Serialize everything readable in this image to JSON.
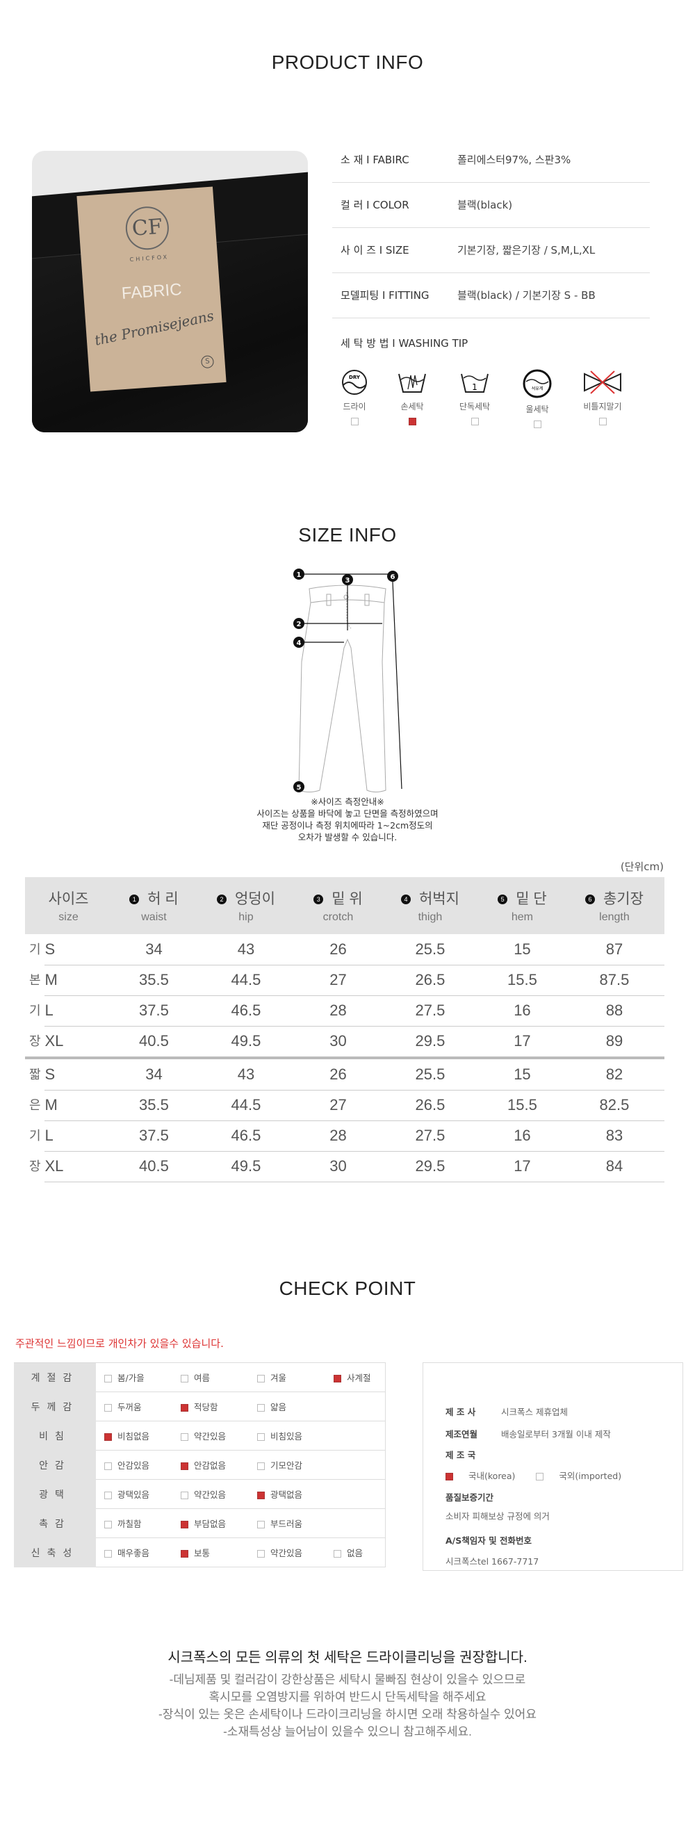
{
  "product_info": {
    "title": "PRODUCT INFO",
    "photo": {
      "tag_brand": "CHICFOX",
      "tag_monogram": "CF",
      "tag_text": "FABRIC",
      "tag_script": "the Promisejeans",
      "tag_size": "S"
    },
    "rows": [
      {
        "label": "소 재 I FABIRC",
        "value": "폴리에스터97%, 스판3%"
      },
      {
        "label": "컬 러 I COLOR",
        "value": "블랙(black)"
      },
      {
        "label": "사 이 즈 I SIZE",
        "value": "기본기장, 짧은기장 / S,M,L,XL"
      },
      {
        "label": "모델피팅 I FITTING",
        "value": "블랙(black) / 기본기장 S - BB"
      },
      {
        "label": "세 탁 방 법 I WASHING TIP",
        "value": ""
      }
    ],
    "washing": [
      {
        "icon": "dry-clean-icon",
        "label": "드라이",
        "checked": false,
        "icon_text": "DRY"
      },
      {
        "icon": "hand-wash-icon",
        "label": "손세탁",
        "checked": true
      },
      {
        "icon": "separate-wash-icon",
        "label": "단독세탁",
        "checked": false,
        "icon_text": "1"
      },
      {
        "icon": "wool-wash-icon",
        "label": "울세탁",
        "checked": false,
        "icon_text": "석유계"
      },
      {
        "icon": "no-wring-icon",
        "label": "비틀지말기",
        "checked": false
      }
    ],
    "check_color": "#cc3333"
  },
  "size_info": {
    "title": "SIZE INFO",
    "diagram_markers": [
      "1",
      "2",
      "3",
      "4",
      "5",
      "6"
    ],
    "notes": [
      "※사이즈 측정안내※",
      "사이즈는 상품을 바닥에 놓고 단면을 측정하였으며",
      "재단 공정이나 측정 위치에따라 1~2cm정도의",
      "오차가 발생할 수 있습니다."
    ],
    "unit": "(단위cm)",
    "headers": [
      {
        "num": "",
        "ko": "사이즈",
        "en": "size"
      },
      {
        "num": "1",
        "ko": "허 리",
        "en": "waist"
      },
      {
        "num": "2",
        "ko": "엉덩이",
        "en": "hip"
      },
      {
        "num": "3",
        "ko": "밑 위",
        "en": "crotch"
      },
      {
        "num": "4",
        "ko": "허벅지",
        "en": "thigh"
      },
      {
        "num": "5",
        "ko": "밑 단",
        "en": "hem"
      },
      {
        "num": "6",
        "ko": "총기장",
        "en": "length"
      }
    ],
    "groups": [
      {
        "label": [
          "기",
          "본",
          "기",
          "장"
        ],
        "rows": [
          [
            "S",
            "34",
            "43",
            "26",
            "25.5",
            "15",
            "87"
          ],
          [
            "M",
            "35.5",
            "44.5",
            "27",
            "26.5",
            "15.5",
            "87.5"
          ],
          [
            "L",
            "37.5",
            "46.5",
            "28",
            "27.5",
            "16",
            "88"
          ],
          [
            "XL",
            "40.5",
            "49.5",
            "30",
            "29.5",
            "17",
            "89"
          ]
        ]
      },
      {
        "label": [
          "짧",
          "은",
          "기",
          "장"
        ],
        "rows": [
          [
            "S",
            "34",
            "43",
            "26",
            "25.5",
            "15",
            "82"
          ],
          [
            "M",
            "35.5",
            "44.5",
            "27",
            "26.5",
            "15.5",
            "82.5"
          ],
          [
            "L",
            "37.5",
            "46.5",
            "28",
            "27.5",
            "16",
            "83"
          ],
          [
            "XL",
            "40.5",
            "49.5",
            "30",
            "29.5",
            "17",
            "84"
          ]
        ]
      }
    ]
  },
  "check_point": {
    "title": "CHECK POINT",
    "note": "주관적인 느낌이므로 개인차가 있을수 있습니다.",
    "rows": [
      {
        "label": "계절감",
        "options": [
          {
            "t": "봄/가을",
            "on": false
          },
          {
            "t": "여름",
            "on": false
          },
          {
            "t": "겨울",
            "on": false
          },
          {
            "t": "사계절",
            "on": true
          }
        ]
      },
      {
        "label": "두께감",
        "options": [
          {
            "t": "두꺼움",
            "on": false
          },
          {
            "t": "적당함",
            "on": true
          },
          {
            "t": "얇음",
            "on": false
          }
        ]
      },
      {
        "label": "비침",
        "options": [
          {
            "t": "비침없음",
            "on": true
          },
          {
            "t": "약간있음",
            "on": false
          },
          {
            "t": "비침있음",
            "on": false
          }
        ]
      },
      {
        "label": "안감",
        "options": [
          {
            "t": "안감있음",
            "on": false
          },
          {
            "t": "안감없음",
            "on": true
          },
          {
            "t": "기모안감",
            "on": false
          }
        ]
      },
      {
        "label": "광택",
        "options": [
          {
            "t": "광택있음",
            "on": false
          },
          {
            "t": "약간있음",
            "on": false
          },
          {
            "t": "광택없음",
            "on": true
          }
        ]
      },
      {
        "label": "촉감",
        "options": [
          {
            "t": "까칠함",
            "on": false
          },
          {
            "t": "부담없음",
            "on": true
          },
          {
            "t": "부드러움",
            "on": false
          }
        ]
      },
      {
        "label": "신축성",
        "options": [
          {
            "t": "매우좋음",
            "on": false
          },
          {
            "t": "보통",
            "on": true
          },
          {
            "t": "약간있음",
            "on": false
          },
          {
            "t": "없음",
            "on": false
          }
        ]
      }
    ],
    "maker": {
      "manufacturer_label": "제 조 사",
      "manufacturer": "시크폭스 제휴업체",
      "date_label": "제조연월",
      "date": "배송일로부터 3개월 이내 제작",
      "country_label": "제 조 국",
      "country_options": [
        {
          "t": "국내(korea)",
          "on": true
        },
        {
          "t": "국외(imported)",
          "on": false
        }
      ],
      "warranty_label": "품질보증기간",
      "warranty": "소비자 피해보상 규정에 의거",
      "as_label": "A/S책임자 및 전화번호",
      "as": "시크폭스tel 1667-7717"
    }
  },
  "footer": {
    "headline": "시크폭스의 모든 의류의 첫 세탁은 드라이클리닝을 권장합니다.",
    "lines": [
      "-데님제품 및 컬러감이 강한상품은 세탁시 물빠짐 현상이 있을수 있으므로",
      "혹시모를 오염방지를 위하여 반드시 단독세탁을 해주세요",
      "-장식이 있는 옷은 손세탁이나 드라이크리닝을 하시면 오래 착용하실수 있어요",
      "-소재특성상 늘어남이 있을수 있으니 참고해주세요."
    ]
  }
}
